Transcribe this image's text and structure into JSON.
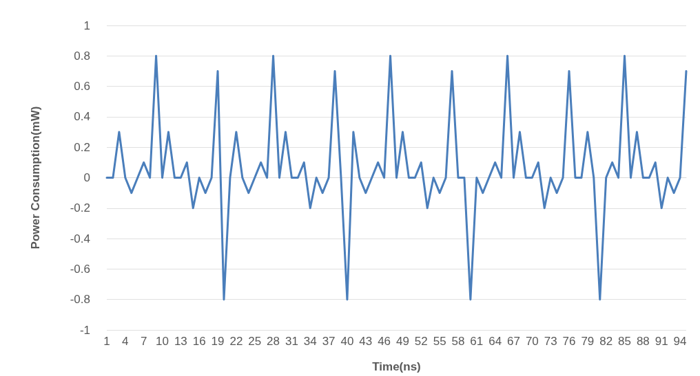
{
  "chart_data": {
    "type": "line",
    "xlabel": "Time(ns)",
    "ylabel": "Power Consumption(mW)",
    "categories": [
      "1",
      null,
      null,
      "4",
      null,
      null,
      "7",
      null,
      null,
      "10",
      null,
      null,
      "13",
      null,
      null,
      "16",
      null,
      null,
      "19",
      null,
      null,
      "22",
      null,
      null,
      "25",
      null,
      null,
      "28",
      null,
      null,
      "31",
      null,
      null,
      "34",
      null,
      null,
      "37",
      null,
      null,
      "40",
      null,
      null,
      "43",
      null,
      null,
      "46",
      null,
      null,
      "49",
      null,
      null,
      "52",
      null,
      null,
      "55",
      null,
      null,
      "58",
      null,
      null,
      "61",
      null,
      null,
      "64",
      null,
      null,
      "67",
      null,
      null,
      "70",
      null,
      null,
      "73",
      null,
      null,
      "76",
      null,
      null,
      "79",
      null,
      null,
      "82",
      null,
      null,
      "85",
      null,
      null,
      "88",
      null,
      null,
      "91",
      null,
      null,
      "94",
      null
    ],
    "series": [
      {
        "color": "#4a7ebb",
        "values": [
          0,
          0,
          0.3,
          0,
          -0.1,
          0,
          0.1,
          0,
          0.8,
          0,
          0.3,
          0,
          0,
          0.1,
          -0.2,
          0,
          -0.1,
          0,
          0.7,
          -0.8,
          0,
          0.3,
          0,
          -0.1,
          0,
          0.1,
          0,
          0.8,
          0,
          0.3,
          0,
          0,
          0.1,
          -0.2,
          0,
          -0.1,
          0,
          0.7,
          0,
          -0.8,
          0.3,
          0,
          -0.1,
          0,
          0.1,
          0,
          0.8,
          0,
          0.3,
          0,
          0,
          0.1,
          -0.2,
          0,
          -0.1,
          0,
          0.7,
          0,
          0,
          -0.8,
          0,
          -0.1,
          0,
          0.1,
          0,
          0.8,
          0,
          0.3,
          0,
          0,
          0.1,
          -0.2,
          0,
          -0.1,
          0,
          0.7,
          0,
          0,
          0.3,
          0,
          -0.8,
          0,
          0.1,
          0,
          0.8,
          0,
          0.3,
          0,
          0,
          0.1,
          -0.2,
          0,
          -0.1,
          0,
          0.7
        ]
      }
    ],
    "ylim": [
      -1,
      1
    ],
    "yticks": [
      -1,
      -0.8,
      -0.6,
      -0.4,
      -0.2,
      0,
      0.2,
      0.4,
      0.6,
      0.8,
      1
    ],
    "grid": "y",
    "marker": "none",
    "line_style": "solid"
  }
}
